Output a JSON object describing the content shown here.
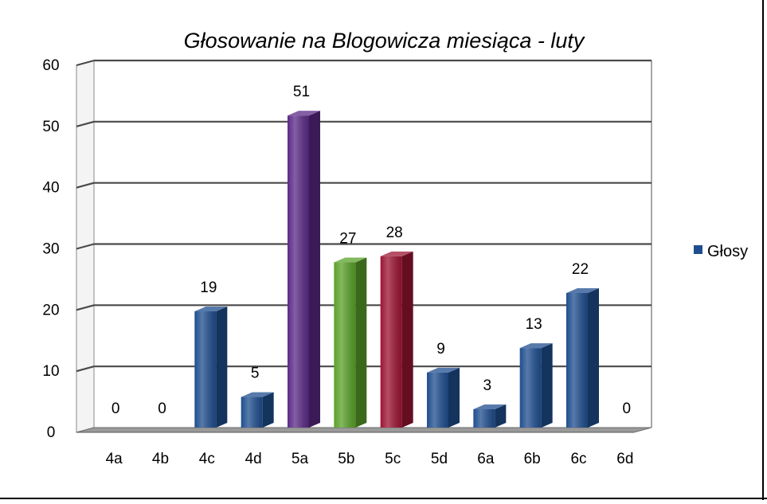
{
  "chart_data": {
    "type": "bar",
    "title": "Głosowanie na Blogowicza miesiąca - luty",
    "xlabel": "",
    "ylabel": "",
    "categories": [
      "4a",
      "4b",
      "4c",
      "4d",
      "5a",
      "5b",
      "5c",
      "5d",
      "6a",
      "6b",
      "6c",
      "6d"
    ],
    "series": [
      {
        "name": "Głosy",
        "values": [
          0,
          0,
          19,
          5,
          51,
          27,
          28,
          9,
          3,
          13,
          22,
          0
        ],
        "data_labels": [
          "0",
          "0",
          "19",
          "5",
          "51",
          "27",
          "28",
          "9",
          "3",
          "13",
          "22",
          "0"
        ]
      }
    ],
    "bar_colors": [
      "#1f4e8f",
      "#1f4e8f",
      "#1f4e8f",
      "#1f4e8f",
      "#5b2a86",
      "#5aa12a",
      "#9c1433",
      "#1f4e8f",
      "#1f4e8f",
      "#1f4e8f",
      "#1f4e8f",
      "#1f4e8f"
    ],
    "legend_color": "#1f4e8f",
    "ylim": [
      0,
      60
    ],
    "yticks": [
      "0",
      "10",
      "20",
      "30",
      "40",
      "50",
      "60"
    ],
    "grid": true,
    "legend_position": "right",
    "style": "3d-bar"
  }
}
